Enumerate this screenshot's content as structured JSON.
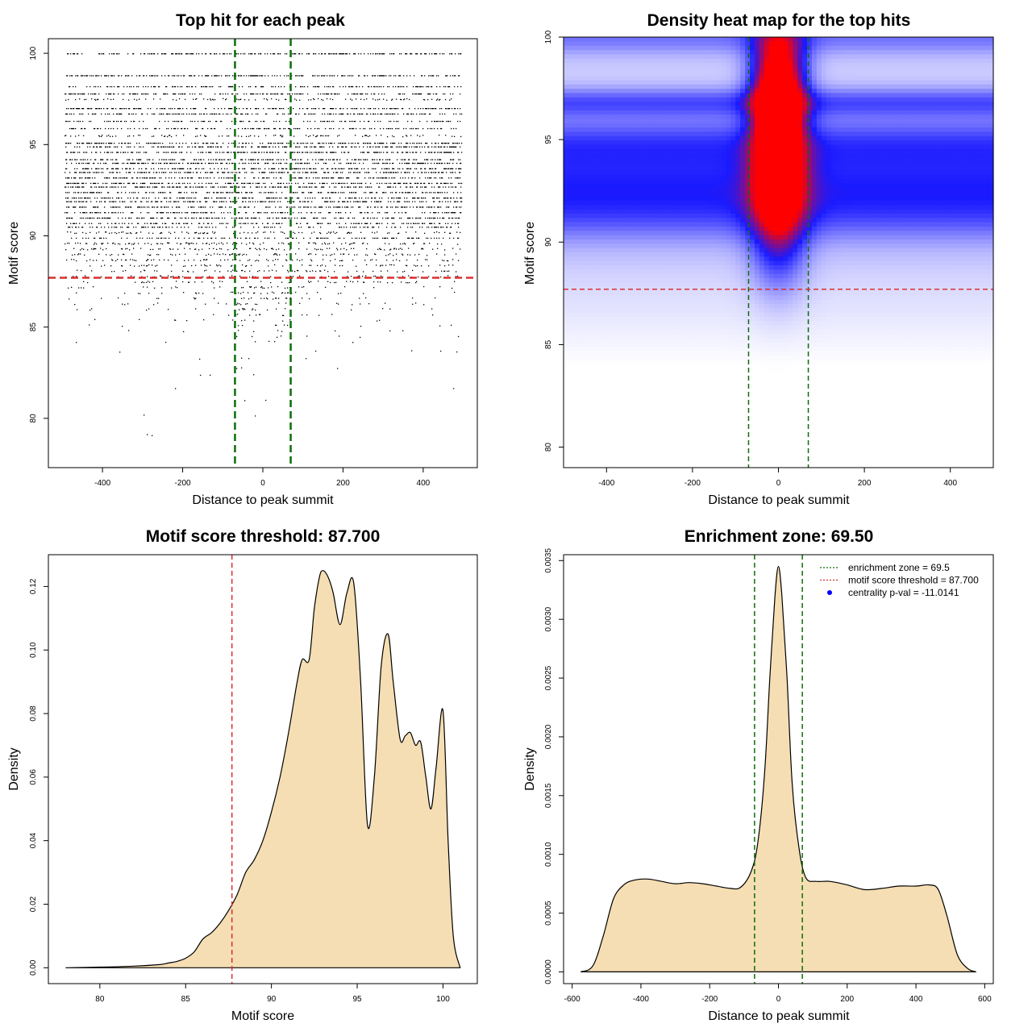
{
  "colors": {
    "threshold_line": "#dc2f2f",
    "zone_line": "#0a6e0a",
    "fill": "#f5deb3",
    "heat_low": "#ffffff",
    "heat_mid": "#1a1aff",
    "heat_high": "#ff0000",
    "legend_dot": "#0000ff"
  },
  "chart_data": [
    {
      "type": "scatter",
      "title": "Top hit for each peak",
      "xlabel": "Distance to peak summit",
      "ylabel": "Motif score",
      "xlim": [
        -535,
        535
      ],
      "ylim": [
        77.3,
        100.8
      ],
      "xticks": [
        -400,
        -200,
        0,
        200,
        400
      ],
      "yticks": [
        80,
        85,
        90,
        95,
        100
      ],
      "vlines": [
        -69.5,
        69.5
      ],
      "hlines": [
        87.7
      ],
      "point_x_range": [
        -495,
        495
      ],
      "score_levels": [
        {
          "score": 100.0,
          "density": 1.0
        },
        {
          "score": 98.8,
          "density": 0.95
        },
        {
          "score": 98.2,
          "density": 0.7
        },
        {
          "score": 97.8,
          "density": 0.8
        },
        {
          "score": 97.5,
          "density": 0.45
        },
        {
          "score": 97.0,
          "density": 0.9
        },
        {
          "score": 96.7,
          "density": 0.85
        },
        {
          "score": 96.3,
          "density": 0.55
        },
        {
          "score": 95.9,
          "density": 0.65
        },
        {
          "score": 95.5,
          "density": 0.4
        },
        {
          "score": 95.1,
          "density": 1.0
        },
        {
          "score": 94.9,
          "density": 0.95
        },
        {
          "score": 94.6,
          "density": 0.95
        },
        {
          "score": 94.2,
          "density": 0.8
        },
        {
          "score": 94.0,
          "density": 0.9
        },
        {
          "score": 93.7,
          "density": 0.95
        },
        {
          "score": 93.5,
          "density": 0.9
        },
        {
          "score": 93.2,
          "density": 0.85
        },
        {
          "score": 92.9,
          "density": 0.9
        },
        {
          "score": 92.7,
          "density": 0.95
        },
        {
          "score": 92.4,
          "density": 0.85
        },
        {
          "score": 92.1,
          "density": 0.8
        },
        {
          "score": 91.9,
          "density": 0.9
        },
        {
          "score": 91.6,
          "density": 0.85
        },
        {
          "score": 91.3,
          "density": 0.7
        },
        {
          "score": 91.0,
          "density": 0.9
        },
        {
          "score": 90.7,
          "density": 0.6
        },
        {
          "score": 90.5,
          "density": 0.55
        },
        {
          "score": 90.2,
          "density": 0.45
        },
        {
          "score": 89.9,
          "density": 0.5
        },
        {
          "score": 89.6,
          "density": 0.45
        },
        {
          "score": 89.3,
          "density": 0.4
        },
        {
          "score": 89.0,
          "density": 0.35
        },
        {
          "score": 88.7,
          "density": 0.35
        },
        {
          "score": 88.4,
          "density": 0.3
        },
        {
          "score": 88.1,
          "density": 0.28
        },
        {
          "score": 87.8,
          "density": 0.25
        },
        {
          "score": 87.5,
          "density": 0.2
        },
        {
          "score": 87.2,
          "density": 0.18
        },
        {
          "score": 86.9,
          "density": 0.15
        },
        {
          "score": 86.6,
          "density": 0.13
        },
        {
          "score": 86.3,
          "density": 0.11
        },
        {
          "score": 86.0,
          "density": 0.08
        },
        {
          "score": 85.7,
          "density": 0.06
        },
        {
          "score": 85.4,
          "density": 0.05
        },
        {
          "score": 85.1,
          "density": 0.04
        },
        {
          "score": 84.8,
          "density": 0.03
        },
        {
          "score": 84.5,
          "density": 0.025
        },
        {
          "score": 84.2,
          "density": 0.02
        },
        {
          "score": 83.7,
          "density": 0.015
        },
        {
          "score": 83.3,
          "density": 0.012
        },
        {
          "score": 82.8,
          "density": 0.008
        },
        {
          "score": 82.4,
          "density": 0.006
        },
        {
          "score": 81.7,
          "density": 0.004
        },
        {
          "score": 81.0,
          "density": 0.003
        },
        {
          "score": 80.2,
          "density": 0.002
        },
        {
          "score": 79.1,
          "density": 0.002
        }
      ]
    },
    {
      "type": "heatmap",
      "title": "Density heat map for the top hits",
      "xlabel": "Distance to peak summit",
      "ylabel": "Motif score",
      "xlim": [
        -500,
        500
      ],
      "ylim": [
        79.0,
        100.0
      ],
      "xticks": [
        -400,
        -200,
        0,
        200,
        400
      ],
      "yticks": [
        80,
        85,
        90,
        95,
        100
      ],
      "vlines": [
        -69.5,
        69.5
      ],
      "hlines": [
        87.7
      ],
      "hotspots": [
        {
          "x": 0,
          "y": 98.3,
          "sx": 42,
          "sy": 1.7,
          "w": 1.0
        },
        {
          "x": 0,
          "y": 93.8,
          "sx": 42,
          "sy": 1.9,
          "w": 1.0
        },
        {
          "x": 0,
          "y": 96.5,
          "sx": 38,
          "sy": 1.0,
          "w": 0.55
        },
        {
          "x": 0,
          "y": 90.5,
          "sx": 45,
          "sy": 2.0,
          "w": 0.45
        }
      ],
      "bands": [
        {
          "y": 100.0,
          "s": 0.6,
          "w": 0.22
        },
        {
          "y": 96.8,
          "s": 0.5,
          "w": 0.3
        },
        {
          "y": 94.8,
          "s": 0.9,
          "w": 0.32
        },
        {
          "y": 92.8,
          "s": 1.1,
          "w": 0.34
        },
        {
          "y": 91.2,
          "s": 1.0,
          "w": 0.22
        }
      ]
    },
    {
      "type": "area",
      "title": "Motif score threshold: 87.700",
      "xlabel": "Motif score",
      "ylabel": "Density",
      "xlim": [
        77.0,
        102.0
      ],
      "ylim": [
        -0.005,
        0.13
      ],
      "xticks": [
        80,
        85,
        90,
        95,
        100
      ],
      "yticks": [
        0.0,
        0.02,
        0.04,
        0.06,
        0.08,
        0.1,
        0.12
      ],
      "ytick_labels": [
        "0.00",
        "0.02",
        "0.04",
        "0.06",
        "0.08",
        "0.10",
        "0.12"
      ],
      "vlines": [
        87.7
      ],
      "x": [
        78.0,
        80.0,
        82.0,
        83.5,
        84.0,
        84.5,
        85.0,
        85.5,
        86.0,
        86.5,
        87.0,
        87.5,
        88.0,
        88.5,
        89.0,
        89.5,
        90.0,
        90.5,
        91.0,
        91.5,
        91.8,
        92.2,
        92.5,
        92.8,
        93.0,
        93.3,
        93.6,
        94.0,
        94.4,
        94.8,
        95.2,
        95.6,
        96.0,
        96.4,
        96.8,
        97.1,
        97.5,
        97.8,
        98.1,
        98.4,
        98.7,
        99.0,
        99.3,
        99.6,
        100.0,
        100.3,
        100.6,
        101.0
      ],
      "y": [
        0.0,
        0.0002,
        0.0005,
        0.001,
        0.0015,
        0.002,
        0.003,
        0.005,
        0.009,
        0.011,
        0.014,
        0.018,
        0.023,
        0.03,
        0.034,
        0.04,
        0.049,
        0.06,
        0.074,
        0.09,
        0.097,
        0.097,
        0.113,
        0.123,
        0.125,
        0.123,
        0.118,
        0.108,
        0.118,
        0.121,
        0.09,
        0.045,
        0.06,
        0.095,
        0.105,
        0.09,
        0.072,
        0.073,
        0.074,
        0.07,
        0.071,
        0.06,
        0.05,
        0.063,
        0.081,
        0.04,
        0.01,
        0.0
      ]
    },
    {
      "type": "area",
      "title": "Enrichment zone: 69.50",
      "xlabel": "Distance to peak summit",
      "ylabel": "Density",
      "xlim": [
        -625,
        625
      ],
      "ylim": [
        -0.0001,
        0.00355
      ],
      "xticks": [
        -600,
        -400,
        -200,
        0,
        200,
        400,
        600
      ],
      "yticks": [
        0.0,
        0.0005,
        0.001,
        0.0015,
        0.002,
        0.0025,
        0.003,
        0.0035
      ],
      "ytick_labels": [
        "0.0000",
        "0.0005",
        "0.0010",
        "0.0015",
        "0.0020",
        "0.0025",
        "0.0030",
        "0.0035"
      ],
      "vlines": [
        -69.5,
        69.5
      ],
      "x": [
        -575,
        -540,
        -510,
        -480,
        -450,
        -420,
        -380,
        -340,
        -300,
        -260,
        -220,
        -180,
        -140,
        -110,
        -80,
        -60,
        -40,
        -25,
        -10,
        0,
        10,
        25,
        40,
        60,
        80,
        110,
        150,
        200,
        250,
        300,
        350,
        400,
        440,
        465,
        490,
        520,
        550,
        575
      ],
      "y": [
        0.0,
        5e-05,
        0.0003,
        0.00062,
        0.00074,
        0.00078,
        0.00079,
        0.00077,
        0.00075,
        0.00076,
        0.00075,
        0.00073,
        0.00071,
        0.00072,
        0.00085,
        0.0011,
        0.0017,
        0.0025,
        0.0032,
        0.00345,
        0.0032,
        0.0025,
        0.0016,
        0.00105,
        0.0008,
        0.00077,
        0.00077,
        0.00074,
        0.0007,
        0.00071,
        0.00073,
        0.00073,
        0.00074,
        0.0007,
        0.00048,
        0.00015,
        3e-05,
        0.0
      ],
      "legend": {
        "placement": "top-right",
        "entries": [
          {
            "label": "enrichment zone = 69.5",
            "style": "dotted",
            "color": "#0a6e0a"
          },
          {
            "label": "motif score threshold = 87.700",
            "style": "dotted",
            "color": "#dc2f2f"
          },
          {
            "label": "centrality p-val = -11.0141",
            "style": "dot",
            "color": "#0000ff"
          }
        ]
      }
    }
  ]
}
